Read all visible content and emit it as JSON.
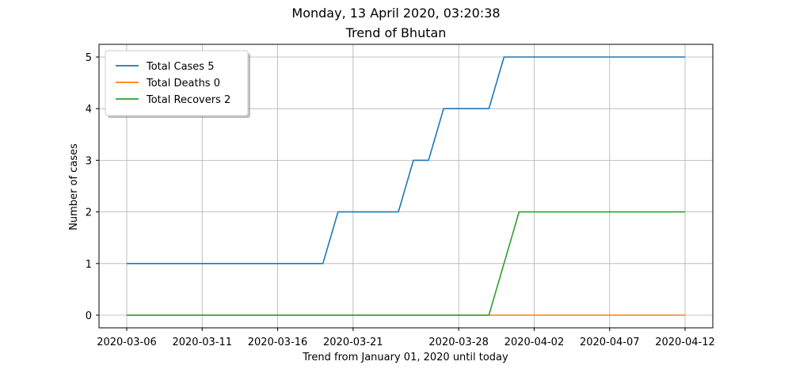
{
  "chart_data": {
    "type": "line",
    "title": "Monday, 13 April 2020, 03:20:38",
    "subtitle": "Trend of Bhutan",
    "xlabel": "Trend from January 01, 2020 until today",
    "ylabel": "Number of cases",
    "x_tick_labels": [
      "2020-03-06",
      "2020-03-11",
      "2020-03-16",
      "2020-03-21",
      "2020-03-28",
      "2020-04-02",
      "2020-04-07",
      "2020-04-12"
    ],
    "xlim": [
      "2020-03-06",
      "2020-04-12"
    ],
    "ylim": [
      0,
      5
    ],
    "y_ticks": [
      0,
      1,
      2,
      3,
      4,
      5
    ],
    "grid": true,
    "legend_position": "top-left",
    "colors": {
      "total_cases": "#1f77b4",
      "total_deaths": "#ff7f0e",
      "total_recovers": "#2ca02c"
    },
    "series": [
      {
        "name": "Total Cases 5",
        "key": "total_cases",
        "points": [
          [
            "2020-03-06",
            1
          ],
          [
            "2020-03-19",
            1
          ],
          [
            "2020-03-20",
            2
          ],
          [
            "2020-03-24",
            2
          ],
          [
            "2020-03-25",
            3
          ],
          [
            "2020-03-26",
            3
          ],
          [
            "2020-03-27",
            4
          ],
          [
            "2020-03-30",
            4
          ],
          [
            "2020-03-31",
            5
          ],
          [
            "2020-04-12",
            5
          ]
        ]
      },
      {
        "name": "Total Deaths 0",
        "key": "total_deaths",
        "points": [
          [
            "2020-03-06",
            0
          ],
          [
            "2020-04-12",
            0
          ]
        ]
      },
      {
        "name": "Total Recovers 2",
        "key": "total_recovers",
        "points": [
          [
            "2020-03-06",
            0
          ],
          [
            "2020-03-30",
            0
          ],
          [
            "2020-04-01",
            2
          ],
          [
            "2020-04-12",
            2
          ]
        ]
      }
    ]
  }
}
